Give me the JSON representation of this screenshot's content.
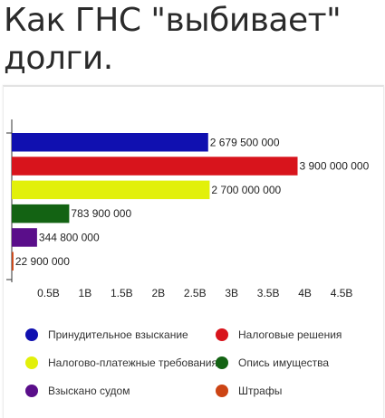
{
  "page": {
    "title_line1": "Как ГНС \"выбивает\"",
    "title_line2": "долги."
  },
  "chart_data": {
    "type": "bar",
    "orientation": "horizontal",
    "title": "",
    "xlabel": "",
    "ylabel": "",
    "xlim": [
      0,
      4750000000
    ],
    "x_ticks": [
      500000000.0,
      1000000000.0,
      1500000000.0,
      2000000000.0,
      2500000000.0,
      3000000000.0,
      3500000000.0,
      4000000000.0,
      4500000000.0
    ],
    "x_tick_labels": [
      "0.5B",
      "1B",
      "1.5B",
      "2B",
      "2.5B",
      "3B",
      "3.5B",
      "4B",
      "4.5B"
    ],
    "grid": false,
    "legend_position": "bottom",
    "series": [
      {
        "name": "Принудительное взыскание",
        "value": 2679500000,
        "label": "2 679 500 000",
        "color": "#1010b0"
      },
      {
        "name": "Налоговые решения",
        "value": 3900000000,
        "label": "3 900 000 000",
        "color": "#d8141c"
      },
      {
        "name": "Налогово-платежные требования",
        "value": 2700000000,
        "label": "2 700 000 000",
        "color": "#e2f00a"
      },
      {
        "name": "Опись имущества",
        "value": 783900000,
        "label": "783 900 000",
        "color": "#136313"
      },
      {
        "name": "Взыскано судом",
        "value": 344800000,
        "label": "344 800 000",
        "color": "#5a0e8a"
      },
      {
        "name": "Штрафы",
        "value": 22900000,
        "label": "22 900 000",
        "color": "#cc4414"
      }
    ]
  }
}
